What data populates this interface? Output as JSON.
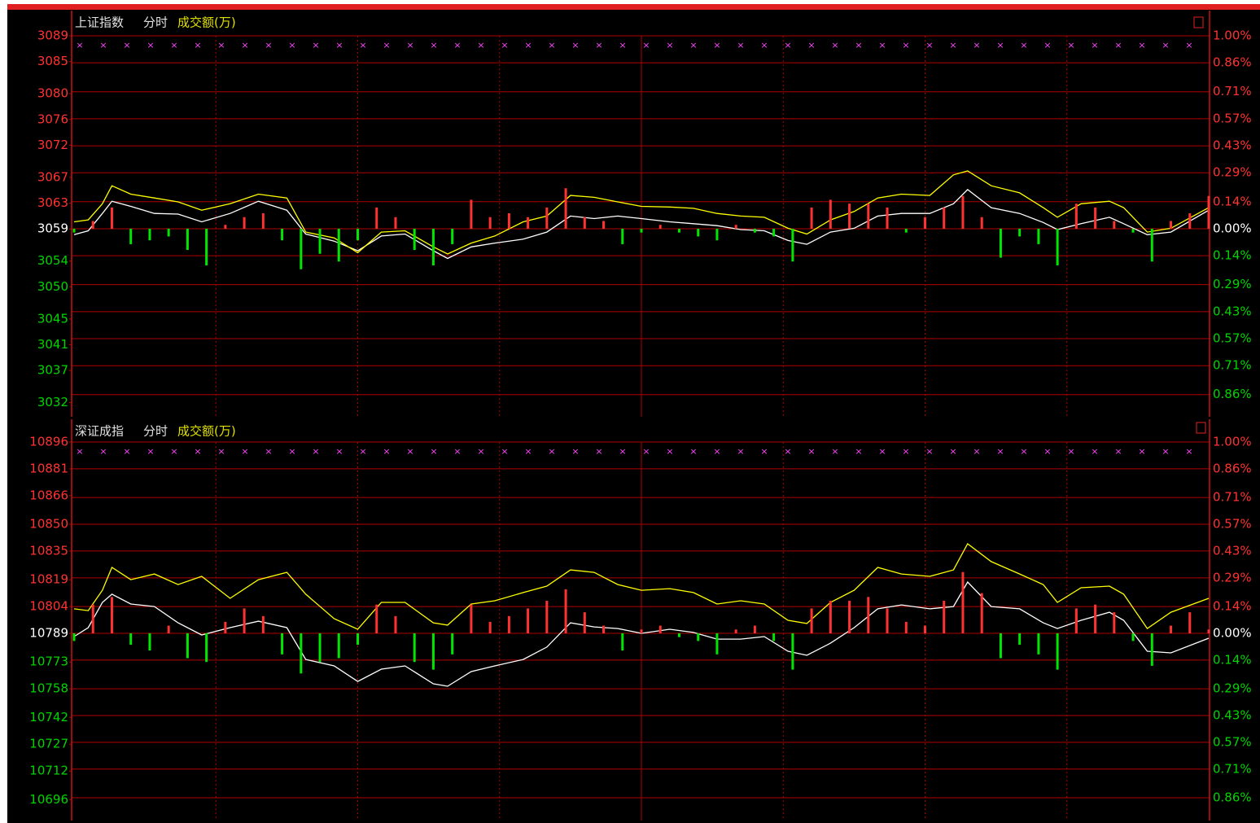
{
  "chart_data": [
    {
      "type": "line",
      "title": "上证指数",
      "subtitle": "分时",
      "volume_label": "成交额(万)",
      "xlim": [
        0,
        240
      ],
      "x": [
        0,
        3,
        6,
        8,
        12,
        17,
        22,
        27,
        33,
        39,
        45,
        49,
        55,
        60,
        65,
        70,
        76,
        79,
        84,
        89,
        95,
        100,
        105,
        110,
        115,
        120,
        126,
        131,
        136,
        141,
        146,
        151,
        155,
        160,
        165,
        170,
        175,
        181,
        186,
        189,
        194,
        200,
        205,
        208,
        213,
        219,
        222,
        227,
        232,
        240
      ],
      "ylim": [
        3029.8,
        3089
      ],
      "yticks": [
        3089,
        3085,
        3080,
        3076,
        3072,
        3067,
        3063,
        3059,
        3054,
        3050,
        3045,
        3041,
        3037,
        3032
      ],
      "y2lim": [
        -0.975,
        1.0
      ],
      "y2ticks": [
        {
          "value": 1.0,
          "label": "1.00%"
        },
        {
          "value": 0.86,
          "label": "0.86%"
        },
        {
          "value": 0.71,
          "label": "0.71%"
        },
        {
          "value": 0.57,
          "label": "0.57%"
        },
        {
          "value": 0.43,
          "label": "0.43%"
        },
        {
          "value": 0.29,
          "label": "0.29%"
        },
        {
          "value": 0.14,
          "label": "0.14%"
        },
        {
          "value": 0.0,
          "label": "0.00%"
        },
        {
          "value": -0.14,
          "label": "0.14%"
        },
        {
          "value": -0.29,
          "label": "0.29%"
        },
        {
          "value": -0.43,
          "label": "0.43%"
        },
        {
          "value": -0.57,
          "label": "0.57%"
        },
        {
          "value": -0.71,
          "label": "0.71%"
        },
        {
          "value": -0.86,
          "label": "0.86%"
        }
      ],
      "series": [
        {
          "color": "#ffffff",
          "values": [
            3058.1,
            3058.7,
            3061.4,
            3063.3,
            3062.5,
            3061.4,
            3061.3,
            3060.1,
            3061.4,
            3063.3,
            3061.9,
            3058.2,
            3057.1,
            3055.6,
            3057.9,
            3058.2,
            3055.6,
            3054.4,
            3056.2,
            3056.8,
            3057.4,
            3058.5,
            3061.0,
            3060.6,
            3061.0,
            3060.6,
            3060.1,
            3059.8,
            3059.5,
            3058.9,
            3058.7,
            3057.2,
            3056.6,
            3058.5,
            3059.1,
            3061.0,
            3061.4,
            3061.4,
            3062.9,
            3065.1,
            3062.3,
            3061.4,
            3060.0,
            3058.9,
            3059.8,
            3060.8,
            3059.8,
            3058.1,
            3058.5,
            3061.9
          ]
        },
        {
          "color": "#ffff00",
          "values": [
            3060.1,
            3060.4,
            3062.9,
            3065.7,
            3064.4,
            3063.8,
            3063.2,
            3061.9,
            3062.9,
            3064.4,
            3063.8,
            3058.5,
            3057.6,
            3055.3,
            3058.5,
            3058.7,
            3056.2,
            3055.1,
            3056.8,
            3057.9,
            3060.1,
            3061.0,
            3064.2,
            3063.9,
            3063.2,
            3062.5,
            3062.4,
            3062.2,
            3061.4,
            3061.0,
            3060.8,
            3059.1,
            3058.2,
            3060.4,
            3061.7,
            3063.8,
            3064.4,
            3064.2,
            3067.4,
            3068.0,
            3065.7,
            3064.6,
            3062.3,
            3060.8,
            3062.9,
            3063.3,
            3062.3,
            3058.5,
            3059.1,
            3062.3
          ]
        },
        {
          "type": "bar",
          "axis": "y2",
          "up_color": "#ff3232",
          "down_color": "#00e600",
          "x": [
            0,
            4,
            8,
            12,
            16,
            20,
            24,
            28,
            32,
            36,
            40,
            44,
            48,
            52,
            56,
            60,
            64,
            68,
            72,
            76,
            80,
            84,
            88,
            92,
            96,
            100,
            104,
            108,
            112,
            116,
            120,
            124,
            128,
            132,
            136,
            140,
            144,
            148,
            152,
            156,
            160,
            164,
            168,
            172,
            176,
            180,
            184,
            188,
            192,
            196,
            200,
            204,
            208,
            212,
            216,
            220,
            224,
            228,
            232,
            236,
            240
          ],
          "values": [
            -0.02,
            0.04,
            0.11,
            -0.08,
            -0.06,
            -0.04,
            -0.11,
            -0.19,
            0.02,
            0.06,
            0.08,
            -0.06,
            -0.21,
            -0.13,
            -0.17,
            -0.06,
            0.11,
            0.06,
            -0.11,
            -0.19,
            -0.08,
            0.15,
            0.06,
            0.08,
            0.06,
            0.11,
            0.21,
            0.06,
            0.04,
            -0.08,
            -0.02,
            0.02,
            -0.02,
            -0.04,
            -0.06,
            0.02,
            -0.02,
            -0.04,
            -0.17,
            0.11,
            0.15,
            0.13,
            0.13,
            0.11,
            -0.02,
            0.06,
            0.11,
            0.17,
            0.06,
            -0.15,
            -0.04,
            -0.08,
            -0.19,
            0.13,
            0.11,
            0.04,
            -0.02,
            -0.17,
            0.04,
            0.08,
            0.17
          ]
        }
      ]
    },
    {
      "type": "line",
      "title": "深证成指",
      "subtitle": "分时",
      "volume_label": "成交额(万)",
      "xlim": [
        0,
        240
      ],
      "x": [
        0,
        3,
        6,
        8,
        12,
        17,
        22,
        27,
        33,
        39,
        45,
        49,
        55,
        60,
        65,
        70,
        76,
        79,
        84,
        89,
        95,
        100,
        105,
        110,
        115,
        120,
        126,
        131,
        136,
        141,
        146,
        151,
        155,
        160,
        165,
        170,
        175,
        181,
        186,
        189,
        194,
        200,
        205,
        208,
        213,
        219,
        222,
        227,
        232,
        240
      ],
      "ylim": [
        10684.3,
        10896
      ],
      "yticks": [
        10896,
        10881,
        10866,
        10850,
        10835,
        10819,
        10804,
        10789,
        10773,
        10758,
        10742,
        10727,
        10712,
        10696
      ],
      "y2lim": [
        -0.979,
        1.0
      ],
      "y2ticks": [
        {
          "value": 1.0,
          "label": "1.00%"
        },
        {
          "value": 0.86,
          "label": "0.86%"
        },
        {
          "value": 0.71,
          "label": "0.71%"
        },
        {
          "value": 0.57,
          "label": "0.57%"
        },
        {
          "value": 0.43,
          "label": "0.43%"
        },
        {
          "value": 0.29,
          "label": "0.29%"
        },
        {
          "value": 0.14,
          "label": "0.14%"
        },
        {
          "value": 0.0,
          "label": "0.00%"
        },
        {
          "value": -0.14,
          "label": "0.14%"
        },
        {
          "value": -0.29,
          "label": "0.29%"
        },
        {
          "value": -0.43,
          "label": "0.43%"
        },
        {
          "value": -0.57,
          "label": "0.57%"
        },
        {
          "value": -0.71,
          "label": "0.71%"
        },
        {
          "value": -0.86,
          "label": "0.86%"
        }
      ],
      "series": [
        {
          "color": "#ffffff",
          "values": [
            10787.2,
            10792.2,
            10806.3,
            10810.9,
            10805.4,
            10804.0,
            10794.9,
            10788.1,
            10792.2,
            10795.8,
            10792.2,
            10774.4,
            10770.8,
            10762.1,
            10769.0,
            10770.8,
            10760.8,
            10759.4,
            10767.6,
            10770.8,
            10774.4,
            10781.3,
            10794.9,
            10792.6,
            10791.7,
            10789.0,
            10791.3,
            10789.5,
            10785.8,
            10785.8,
            10787.2,
            10779.0,
            10776.7,
            10783.5,
            10792.2,
            10802.7,
            10804.9,
            10802.7,
            10804.0,
            10817.7,
            10804.0,
            10802.7,
            10794.9,
            10791.7,
            10796.3,
            10800.8,
            10796.3,
            10779.0,
            10778.1,
            10786.3
          ]
        },
        {
          "color": "#ffff00",
          "values": [
            10802.7,
            10801.7,
            10813.1,
            10825.9,
            10819.0,
            10822.2,
            10816.3,
            10820.9,
            10808.6,
            10819.0,
            10823.1,
            10810.9,
            10797.2,
            10791.3,
            10806.3,
            10806.3,
            10794.9,
            10793.6,
            10805.4,
            10807.2,
            10811.8,
            10815.4,
            10824.5,
            10823.1,
            10816.3,
            10813.1,
            10814.0,
            10811.8,
            10805.4,
            10807.2,
            10805.4,
            10796.3,
            10794.5,
            10806.3,
            10813.1,
            10825.9,
            10822.2,
            10820.9,
            10824.5,
            10839.1,
            10829.1,
            10822.2,
            10816.3,
            10806.3,
            10814.5,
            10815.4,
            10810.9,
            10791.7,
            10800.8,
            10808.6
          ]
        },
        {
          "type": "bar",
          "axis": "y2",
          "up_color": "#ff3232",
          "down_color": "#00e600",
          "x": [
            0,
            4,
            8,
            12,
            16,
            20,
            24,
            28,
            32,
            36,
            40,
            44,
            48,
            52,
            56,
            60,
            64,
            68,
            72,
            76,
            80,
            84,
            88,
            92,
            96,
            100,
            104,
            108,
            112,
            116,
            120,
            124,
            128,
            132,
            136,
            140,
            144,
            148,
            152,
            156,
            160,
            164,
            168,
            172,
            176,
            180,
            184,
            188,
            192,
            196,
            200,
            204,
            208,
            212,
            216,
            220,
            224,
            228,
            232,
            236,
            240
          ],
          "values": [
            -0.04,
            0.15,
            0.19,
            -0.06,
            -0.09,
            0.04,
            -0.13,
            -0.15,
            0.06,
            0.13,
            0.09,
            -0.11,
            -0.21,
            -0.15,
            -0.13,
            -0.06,
            0.15,
            0.09,
            -0.15,
            -0.19,
            -0.11,
            0.15,
            0.06,
            0.09,
            0.13,
            0.17,
            0.23,
            0.11,
            0.04,
            -0.09,
            0.02,
            0.04,
            -0.02,
            -0.04,
            -0.11,
            0.02,
            0.04,
            -0.04,
            -0.19,
            0.13,
            0.17,
            0.17,
            0.19,
            0.13,
            0.06,
            0.04,
            0.17,
            0.32,
            0.21,
            -0.13,
            -0.06,
            -0.11,
            -0.19,
            0.13,
            0.15,
            0.11,
            -0.04,
            -0.17,
            0.04,
            0.11,
            0.02
          ]
        }
      ]
    }
  ]
}
